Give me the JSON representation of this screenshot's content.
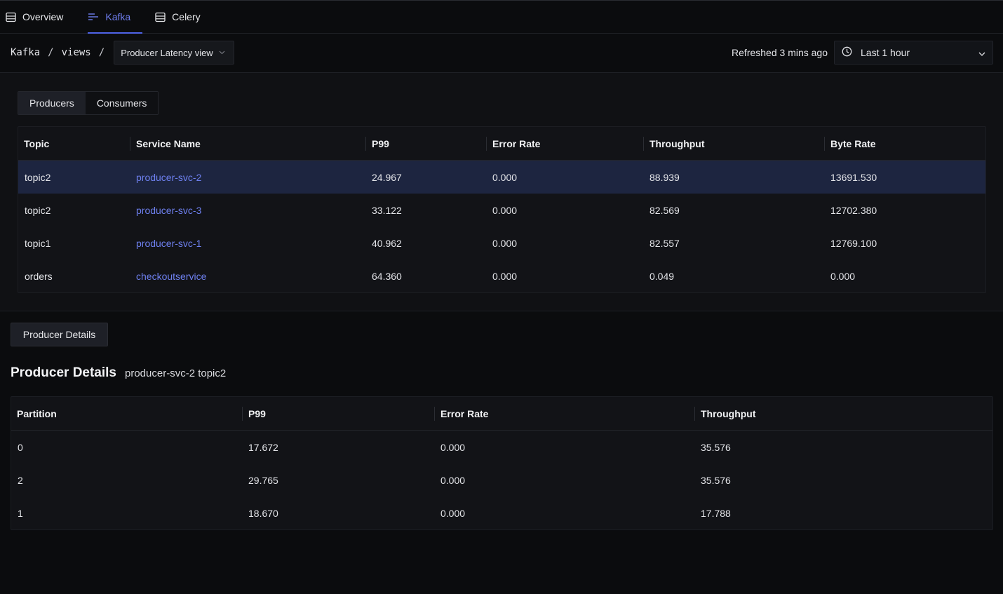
{
  "nav": {
    "tabs": [
      {
        "label": "Overview",
        "icon": "table-icon"
      },
      {
        "label": "Kafka",
        "icon": "bars-icon",
        "active": true
      },
      {
        "label": "Celery",
        "icon": "table-icon"
      }
    ]
  },
  "breadcrumb": {
    "root": "Kafka",
    "sep1": "/",
    "middle": "views",
    "sep2": "/",
    "view_select": "Producer Latency view"
  },
  "header": {
    "refreshed": "Refreshed 3 mins ago",
    "time_range": "Last 1 hour"
  },
  "segment_tabs": {
    "producers": "Producers",
    "consumers": "Consumers",
    "active": "Producers"
  },
  "producers_table": {
    "columns": [
      "Topic",
      "Service Name",
      "P99",
      "Error Rate",
      "Throughput",
      "Byte Rate"
    ],
    "rows": [
      [
        "topic2",
        "producer-svc-2",
        "24.967",
        "0.000",
        "88.939",
        "13691.530"
      ],
      [
        "topic2",
        "producer-svc-3",
        "33.122",
        "0.000",
        "82.569",
        "12702.380"
      ],
      [
        "topic1",
        "producer-svc-1",
        "40.962",
        "0.000",
        "82.557",
        "12769.100"
      ],
      [
        "orders",
        "checkoutservice",
        "64.360",
        "0.000",
        "0.049",
        "0.000"
      ]
    ]
  },
  "details": {
    "button_label": "Producer Details",
    "title": "Producer Details",
    "subtitle": "producer-svc-2 topic2"
  },
  "partitions_table": {
    "columns": [
      "Partition",
      "P99",
      "Error Rate",
      "Throughput"
    ],
    "rows": [
      [
        "0",
        "17.672",
        "0.000",
        "35.576"
      ],
      [
        "2",
        "29.765",
        "0.000",
        "35.576"
      ],
      [
        "1",
        "18.670",
        "0.000",
        "17.788"
      ]
    ]
  },
  "colors": {
    "accent": "#4f63e7",
    "link": "#6e80ef",
    "selected_row": "#1d2540",
    "background": "#0b0c0e"
  }
}
